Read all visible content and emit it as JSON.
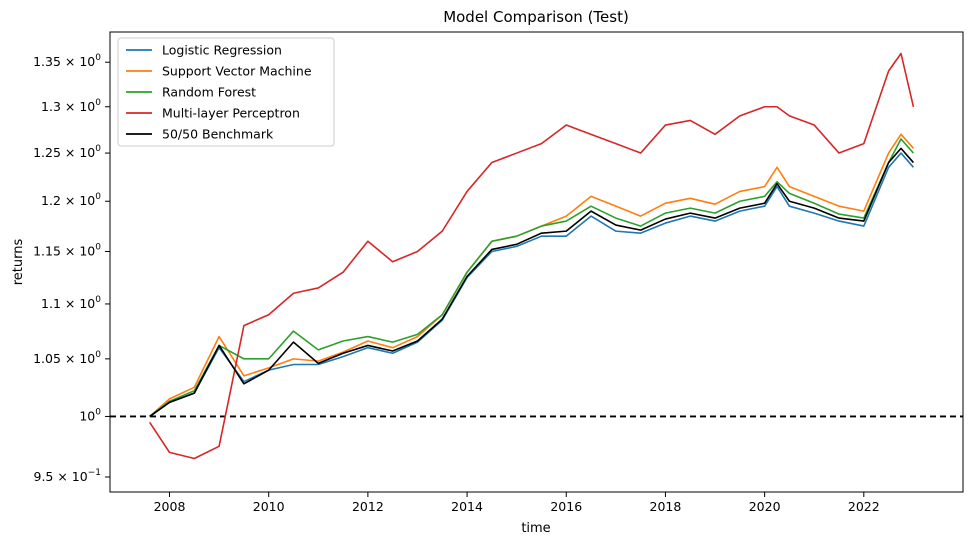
{
  "chart_data": {
    "type": "line",
    "title": "Model Comparison (Test)",
    "xlabel": "time",
    "ylabel": "returns",
    "yscale": "log",
    "xlim": [
      2006.8,
      2024.0
    ],
    "ylim": [
      0.938,
      1.385
    ],
    "grid": false,
    "legend_position": "top-left",
    "x_ticks": [
      2008,
      2010,
      2012,
      2014,
      2016,
      2018,
      2020,
      2022
    ],
    "y_ticks": [
      {
        "value": 0.95,
        "mantissa": "9.5",
        "exp": "−1"
      },
      {
        "value": 1.0,
        "mantissa": "",
        "exp": "0"
      },
      {
        "value": 1.05,
        "mantissa": "1.05",
        "exp": "0"
      },
      {
        "value": 1.1,
        "mantissa": "1.1",
        "exp": "0"
      },
      {
        "value": 1.15,
        "mantissa": "1.15",
        "exp": "0"
      },
      {
        "value": 1.2,
        "mantissa": "1.2",
        "exp": "0"
      },
      {
        "value": 1.25,
        "mantissa": "1.25",
        "exp": "0"
      },
      {
        "value": 1.3,
        "mantissa": "1.3",
        "exp": "0"
      },
      {
        "value": 1.35,
        "mantissa": "1.35",
        "exp": "0"
      }
    ],
    "reference_line": {
      "y": 1.0,
      "style": "dashed",
      "color": "#000000"
    },
    "x": [
      2007.6,
      2008.0,
      2008.5,
      2009.0,
      2009.5,
      2010.0,
      2010.5,
      2011.0,
      2011.5,
      2012.0,
      2012.5,
      2013.0,
      2013.5,
      2014.0,
      2014.5,
      2015.0,
      2015.5,
      2016.0,
      2016.5,
      2017.0,
      2017.5,
      2018.0,
      2018.5,
      2019.0,
      2019.5,
      2020.0,
      2020.25,
      2020.5,
      2021.0,
      2021.5,
      2022.0,
      2022.5,
      2022.75,
      2023.0
    ],
    "series": [
      {
        "name": "Logistic Regression",
        "color": "#1f77b4",
        "values": [
          1.0,
          1.012,
          1.02,
          1.06,
          1.03,
          1.04,
          1.045,
          1.045,
          1.052,
          1.06,
          1.055,
          1.065,
          1.085,
          1.125,
          1.15,
          1.155,
          1.165,
          1.165,
          1.185,
          1.17,
          1.168,
          1.178,
          1.185,
          1.18,
          1.19,
          1.195,
          1.215,
          1.195,
          1.188,
          1.18,
          1.175,
          1.235,
          1.25,
          1.235
        ]
      },
      {
        "name": "Support Vector Machine",
        "color": "#ff7f0e",
        "values": [
          1.0,
          1.015,
          1.025,
          1.07,
          1.035,
          1.042,
          1.05,
          1.048,
          1.056,
          1.066,
          1.06,
          1.07,
          1.09,
          1.13,
          1.16,
          1.165,
          1.175,
          1.185,
          1.205,
          1.195,
          1.185,
          1.198,
          1.203,
          1.197,
          1.21,
          1.215,
          1.235,
          1.215,
          1.205,
          1.195,
          1.19,
          1.25,
          1.27,
          1.255
        ]
      },
      {
        "name": "Random Forest",
        "color": "#2ca02c",
        "values": [
          1.0,
          1.013,
          1.022,
          1.062,
          1.05,
          1.05,
          1.075,
          1.058,
          1.066,
          1.07,
          1.065,
          1.072,
          1.09,
          1.13,
          1.16,
          1.165,
          1.175,
          1.18,
          1.195,
          1.183,
          1.175,
          1.188,
          1.193,
          1.188,
          1.2,
          1.205,
          1.22,
          1.208,
          1.198,
          1.187,
          1.183,
          1.24,
          1.265,
          1.25
        ]
      },
      {
        "name": "Multi-layer Perceptron",
        "color": "#d62728",
        "values": [
          0.995,
          0.97,
          0.965,
          0.975,
          1.08,
          1.09,
          1.11,
          1.115,
          1.13,
          1.16,
          1.14,
          1.15,
          1.17,
          1.21,
          1.24,
          1.25,
          1.26,
          1.28,
          1.27,
          1.26,
          1.25,
          1.28,
          1.285,
          1.27,
          1.29,
          1.3,
          1.3,
          1.29,
          1.28,
          1.25,
          1.26,
          1.34,
          1.36,
          1.3
        ]
      },
      {
        "name": "50/50 Benchmark",
        "color": "#000000",
        "values": [
          1.0,
          1.012,
          1.02,
          1.062,
          1.028,
          1.04,
          1.065,
          1.046,
          1.055,
          1.062,
          1.057,
          1.066,
          1.086,
          1.126,
          1.152,
          1.157,
          1.168,
          1.17,
          1.19,
          1.176,
          1.171,
          1.182,
          1.188,
          1.183,
          1.193,
          1.198,
          1.218,
          1.2,
          1.193,
          1.183,
          1.18,
          1.24,
          1.255,
          1.24
        ]
      }
    ]
  }
}
